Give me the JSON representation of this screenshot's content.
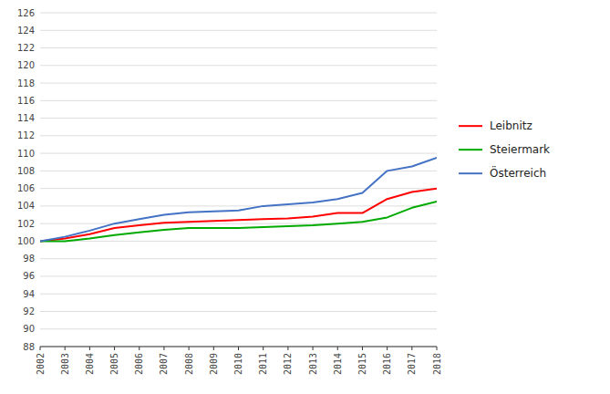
{
  "chart_data": {
    "type": "line",
    "x": [
      2002,
      2003,
      2004,
      2005,
      2006,
      2007,
      2008,
      2009,
      2010,
      2011,
      2012,
      2013,
      2014,
      2015,
      2016,
      2017,
      2018
    ],
    "series": [
      {
        "name": "Leibnitz",
        "color": "#FF0000",
        "values": [
          100.0,
          100.3,
          100.8,
          101.5,
          101.8,
          102.1,
          102.2,
          102.3,
          102.4,
          102.5,
          102.6,
          102.8,
          103.2,
          103.2,
          104.8,
          105.6,
          106.0
        ]
      },
      {
        "name": "Steiermark",
        "color": "#00AA00",
        "values": [
          100.0,
          100.0,
          100.3,
          100.7,
          101.0,
          101.3,
          101.5,
          101.5,
          101.5,
          101.6,
          101.7,
          101.8,
          102.0,
          102.2,
          102.7,
          103.8,
          104.5
        ]
      },
      {
        "name": "Österreich",
        "color": "#4472C4",
        "values": [
          100.0,
          100.5,
          101.2,
          102.0,
          102.5,
          103.0,
          103.3,
          103.4,
          103.5,
          104.0,
          104.2,
          104.4,
          104.8,
          105.5,
          108.0,
          108.5,
          109.5
        ]
      }
    ],
    "xlim": [
      2002,
      2018
    ],
    "xticks": [
      2002,
      2003,
      2004,
      2005,
      2006,
      2007,
      2008,
      2009,
      2010,
      2011,
      2012,
      2013,
      2014,
      2015,
      2016,
      2017,
      2018
    ],
    "ylim": [
      88,
      126
    ],
    "yticks": [
      88,
      90,
      92,
      94,
      96,
      98,
      100,
      102,
      104,
      106,
      108,
      110,
      112,
      114,
      116,
      118,
      120,
      122,
      124,
      126
    ],
    "grid": true,
    "legend": "right"
  }
}
